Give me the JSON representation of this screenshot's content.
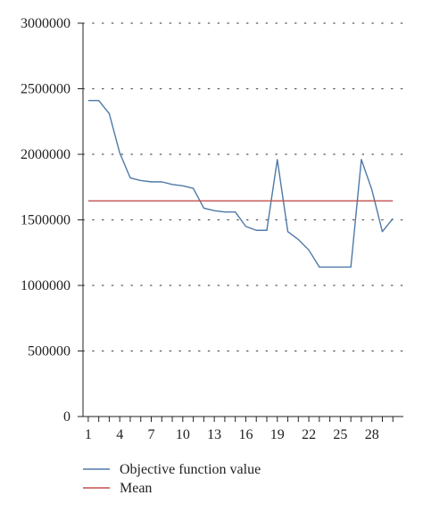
{
  "chart_data": {
    "type": "line",
    "title": "",
    "xlabel": "",
    "ylabel": "",
    "xlim": [
      0.5,
      31
    ],
    "ylim": [
      0,
      3000000
    ],
    "x_ticks": [
      1,
      4,
      7,
      10,
      13,
      16,
      19,
      22,
      25,
      28
    ],
    "x_tick_labels": [
      "1",
      "4",
      "7",
      "10",
      "13",
      "16",
      "19",
      "22",
      "25",
      "28"
    ],
    "y_ticks": [
      0,
      500000,
      1000000,
      1500000,
      2000000,
      2500000,
      3000000
    ],
    "y_tick_labels": [
      "0",
      "500000",
      "1000000",
      "1500000",
      "2000000",
      "2500000",
      "3000000"
    ],
    "grid": "horizontal-dotted",
    "legend_position": "bottom-left",
    "x": [
      1,
      2,
      3,
      4,
      5,
      6,
      7,
      8,
      9,
      10,
      11,
      12,
      13,
      14,
      15,
      16,
      17,
      18,
      19,
      20,
      21,
      22,
      23,
      24,
      25,
      26,
      27,
      28,
      29,
      30
    ],
    "series": [
      {
        "name": "Objective function value",
        "color": "#4e79a7",
        "values": [
          2410000,
          2410000,
          2310000,
          2010000,
          1820000,
          1800000,
          1790000,
          1790000,
          1770000,
          1760000,
          1740000,
          1590000,
          1570000,
          1560000,
          1560000,
          1450000,
          1420000,
          1420000,
          1960000,
          1410000,
          1350000,
          1270000,
          1140000,
          1140000,
          1140000,
          1140000,
          1960000,
          1730000,
          1410000,
          1510000
        ]
      },
      {
        "name": "Mean",
        "color": "#c0504d",
        "values": [
          1645000,
          1645000,
          1645000,
          1645000,
          1645000,
          1645000,
          1645000,
          1645000,
          1645000,
          1645000,
          1645000,
          1645000,
          1645000,
          1645000,
          1645000,
          1645000,
          1645000,
          1645000,
          1645000,
          1645000,
          1645000,
          1645000,
          1645000,
          1645000,
          1645000,
          1645000,
          1645000,
          1645000,
          1645000,
          1645000
        ]
      }
    ]
  }
}
